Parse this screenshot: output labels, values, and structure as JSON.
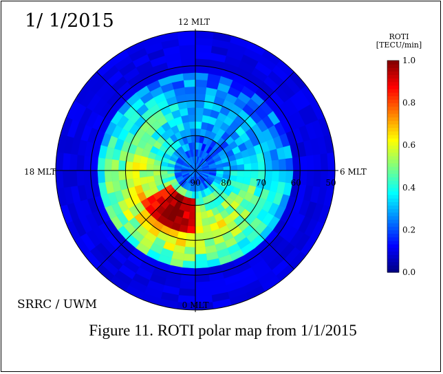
{
  "date_label": "1/ 1/2015",
  "credit": "SRRC / UWM",
  "caption": "Figure 11. ROTI polar map from 1/1/2015",
  "chart_data": {
    "type": "heatmap",
    "projection": "polar",
    "mlt_labels": {
      "top": "12 MLT",
      "bottom": "0 MLT",
      "left": "18 MLT",
      "right": "6 MLT"
    },
    "latitude_ticks": [
      90,
      80,
      70,
      60,
      50
    ],
    "latitude_range": [
      50,
      90
    ],
    "colorbar": {
      "title_line1": "ROTI",
      "title_line2": "[TECU/min]",
      "range": [
        0.0,
        1.0
      ],
      "ticks": [
        "0.0",
        "0.2",
        "0.4",
        "0.6",
        "0.8",
        "1.0"
      ]
    },
    "features": [
      {
        "region": "background",
        "roti": 0.1
      },
      {
        "region": "auroral oval",
        "lat_range": [
          62,
          84
        ],
        "roti": [
          0.3,
          0.7
        ]
      },
      {
        "region": "nightside peak near 20-23 MLT",
        "lat_range": [
          74,
          80
        ],
        "roti": [
          0.8,
          1.0
        ]
      }
    ]
  }
}
